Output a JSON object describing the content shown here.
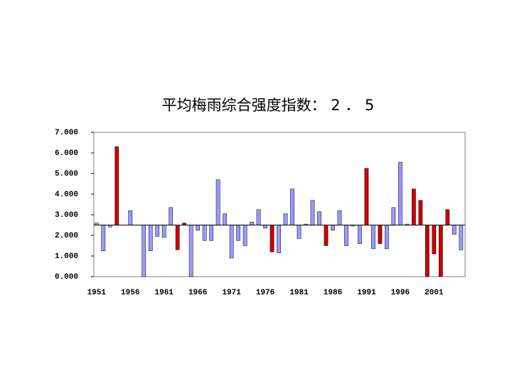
{
  "chart_data": {
    "type": "bar",
    "title": "平均梅雨综合强度指数： 2 ． 5",
    "x": [
      1951,
      1952,
      1953,
      1954,
      1955,
      1956,
      1957,
      1958,
      1959,
      1960,
      1961,
      1962,
      1963,
      1964,
      1965,
      1966,
      1967,
      1968,
      1969,
      1970,
      1971,
      1972,
      1973,
      1974,
      1975,
      1976,
      1977,
      1978,
      1979,
      1980,
      1981,
      1982,
      1983,
      1984,
      1985,
      1986,
      1987,
      1988,
      1989,
      1990,
      1991,
      1992,
      1993,
      1994,
      1995,
      1996,
      1997,
      1998,
      1999,
      2000,
      2001,
      2002,
      2003,
      2004,
      2005
    ],
    "values": [
      2.6,
      1.25,
      2.4,
      6.3,
      2.5,
      3.2,
      2.5,
      0.0,
      1.25,
      1.95,
      1.9,
      3.35,
      1.3,
      2.6,
      0.0,
      2.25,
      1.75,
      1.75,
      4.7,
      3.05,
      0.9,
      1.75,
      1.5,
      2.65,
      3.25,
      2.35,
      1.2,
      1.15,
      3.05,
      4.25,
      1.85,
      2.55,
      3.7,
      3.15,
      1.5,
      2.25,
      3.2,
      1.5,
      2.45,
      1.6,
      5.25,
      1.35,
      1.6,
      1.35,
      3.35,
      5.55,
      2.55,
      4.25,
      3.7,
      0.0,
      1.1,
      0.0,
      3.25,
      2.05,
      1.3
    ],
    "colors": [
      "#9999ff",
      "#9999ff",
      "#9999ff",
      "#cc0000",
      "#9999ff",
      "#9999ff",
      "#9999ff",
      "#9999ff",
      "#9999ff",
      "#9999ff",
      "#9999ff",
      "#9999ff",
      "#cc0000",
      "#cc0000",
      "#9999ff",
      "#9999ff",
      "#9999ff",
      "#9999ff",
      "#9999ff",
      "#9999ff",
      "#9999ff",
      "#9999ff",
      "#9999ff",
      "#9999ff",
      "#9999ff",
      "#9999ff",
      "#cc0000",
      "#9999ff",
      "#9999ff",
      "#9999ff",
      "#9999ff",
      "#9999ff",
      "#9999ff",
      "#9999ff",
      "#cc0000",
      "#9999ff",
      "#9999ff",
      "#9999ff",
      "#9999ff",
      "#9999ff",
      "#cc0000",
      "#9999ff",
      "#cc0000",
      "#9999ff",
      "#9999ff",
      "#9999ff",
      "#9999ff",
      "#cc0000",
      "#cc0000",
      "#cc0000",
      "#cc0000",
      "#cc0000",
      "#cc0000",
      "#9999ff",
      "#9999ff"
    ],
    "baseline": 2.5,
    "xlim": [
      1950.6,
      2005.6
    ],
    "xticks": [
      1951,
      1956,
      1961,
      1966,
      1971,
      1976,
      1981,
      1986,
      1991,
      1996,
      2001
    ],
    "ylim": [
      0,
      7
    ],
    "yticks": [
      {
        "value": 0,
        "label": "0.000"
      },
      {
        "value": 1,
        "label": "1.000"
      },
      {
        "value": 2,
        "label": "2.000"
      },
      {
        "value": 3,
        "label": "3.000"
      },
      {
        "value": 4,
        "label": "4.000"
      },
      {
        "value": 5,
        "label": "5.000"
      },
      {
        "value": 6,
        "label": "6.000"
      },
      {
        "value": 7,
        "label": "7.000"
      }
    ],
    "grid": false
  }
}
